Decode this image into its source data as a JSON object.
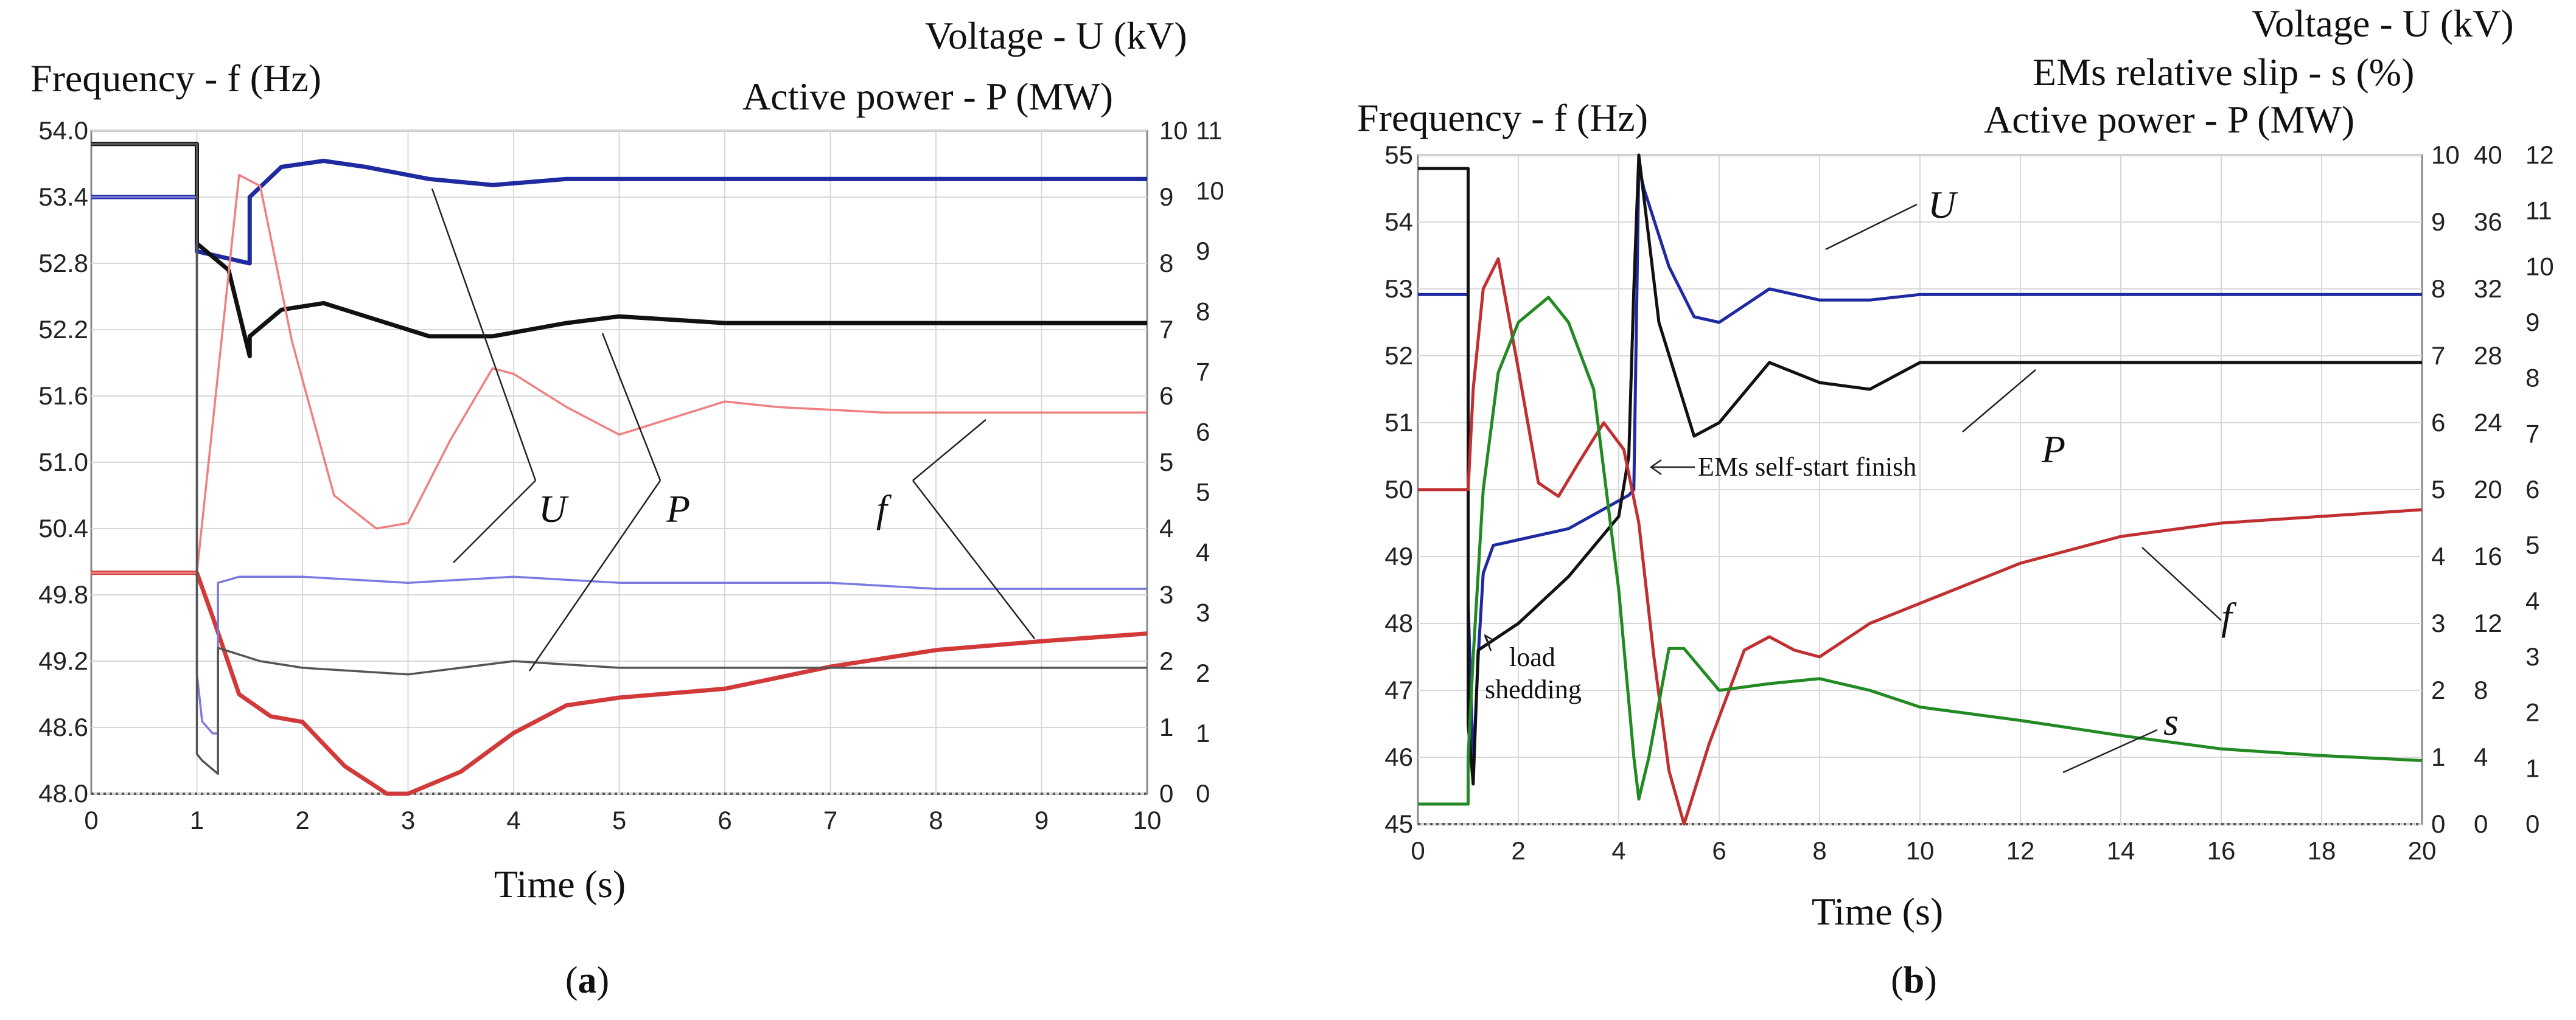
{
  "chart_data": [
    {
      "id": "a",
      "type": "line",
      "panel_label": "a",
      "left_axis_title": "Frequency - f (Hz)",
      "right_axis_title_1": "Voltage - U (kV)",
      "right_axis_title_2": "Active power - P (MW)",
      "xlabel": "Time (s)",
      "xlim": [
        0,
        10
      ],
      "x_ticks": [
        "0",
        "1",
        "2",
        "3",
        "4",
        "5",
        "6",
        "7",
        "8",
        "9",
        "10"
      ],
      "f_axis": {
        "ylim": [
          48.0,
          54.0
        ],
        "ticks": [
          "54.0",
          "53.4",
          "52.8",
          "52.2",
          "51.6",
          "51.0",
          "50.4",
          "49.8",
          "49.2",
          "48.6",
          "48.0"
        ]
      },
      "p_axis": {
        "ylim": [
          0,
          10
        ],
        "ticks": [
          "10",
          "9",
          "8",
          "7",
          "6",
          "5",
          "4",
          "3",
          "2",
          "1",
          "0"
        ]
      },
      "u_axis": {
        "ylim": [
          0,
          11
        ],
        "ticks": [
          "11",
          "10",
          "9",
          "8",
          "7",
          "6",
          "5",
          "4",
          "3",
          "2",
          "1",
          "0"
        ]
      },
      "series": [
        {
          "name": "U",
          "axis": "u",
          "color": "#1f2aa0",
          "x": [
            0,
            1,
            1.0,
            1.5,
            1.5,
            1.8,
            2.2,
            2.6,
            3.2,
            3.8,
            4.5,
            5.5,
            7,
            10
          ],
          "values": [
            9.9,
            9.9,
            9.0,
            8.8,
            9.9,
            10.4,
            10.5,
            10.4,
            10.2,
            10.1,
            10.2,
            10.2,
            10.2,
            10.2
          ]
        },
        {
          "name": "P",
          "axis": "p",
          "color": "#111111",
          "x": [
            0,
            1,
            1.0,
            1.3,
            1.5,
            1.5,
            1.8,
            2.2,
            2.6,
            3.2,
            3.8,
            4.5,
            5,
            6,
            10
          ],
          "values": [
            9.8,
            9.8,
            8.3,
            7.9,
            6.6,
            6.9,
            7.3,
            7.4,
            7.2,
            6.9,
            6.9,
            7.1,
            7.2,
            7.1,
            7.1
          ]
        },
        {
          "name": "f",
          "axis": "f",
          "color": "#d23a3a",
          "x": [
            0,
            1,
            1.15,
            1.4,
            1.7,
            2.0,
            2.4,
            2.8,
            3.0,
            3.5,
            4.0,
            4.5,
            5,
            6,
            7,
            8,
            9,
            10
          ],
          "values": [
            50.0,
            50.0,
            49.6,
            48.9,
            48.7,
            48.65,
            48.25,
            48.0,
            48.0,
            48.2,
            48.55,
            48.8,
            48.87,
            48.95,
            49.15,
            49.3,
            49.38,
            49.45
          ]
        },
        {
          "name": "U (low)",
          "axis": "u",
          "color": "#7a7ae0",
          "x": [
            0,
            1,
            1.0,
            1.05,
            1.15,
            1.2,
            1.2,
            1.4,
            2,
            3,
            4,
            5,
            6,
            7,
            8,
            10
          ],
          "values": [
            9.9,
            9.9,
            2.0,
            1.2,
            1.0,
            1.0,
            3.5,
            3.6,
            3.6,
            3.5,
            3.6,
            3.5,
            3.5,
            3.5,
            3.4,
            3.4
          ]
        },
        {
          "name": "f (oscillation)",
          "axis": "f",
          "color": "#f08080",
          "x": [
            0,
            1,
            1.2,
            1.4,
            1.6,
            1.9,
            2.3,
            2.7,
            3.0,
            3.4,
            3.8,
            4.0,
            4.5,
            5.0,
            5.5,
            6.0,
            6.5,
            7.5,
            9,
            10
          ],
          "values": [
            50.0,
            50.0,
            51.8,
            53.6,
            53.5,
            52.1,
            50.7,
            50.4,
            50.45,
            51.2,
            51.85,
            51.8,
            51.5,
            51.25,
            51.4,
            51.55,
            51.5,
            51.45,
            51.45,
            51.45
          ]
        },
        {
          "name": "P (low)",
          "axis": "p",
          "color": "#555555",
          "x": [
            0,
            1,
            1.0,
            1.05,
            1.2,
            1.2,
            1.6,
            2,
            3,
            4,
            5,
            6,
            7,
            8,
            10
          ],
          "values": [
            9.8,
            9.8,
            0.6,
            0.5,
            0.3,
            2.2,
            2.0,
            1.9,
            1.8,
            2.0,
            1.9,
            1.9,
            1.9,
            1.9,
            1.9
          ]
        }
      ],
      "labels": [
        "U",
        "P",
        "f"
      ]
    },
    {
      "id": "b",
      "type": "line",
      "panel_label": "b",
      "left_axis_title": "Frequency - f (Hz)",
      "right_axis_title_1": "Voltage - U (kV)",
      "right_axis_title_2": "EMs relative slip - s (%)",
      "right_axis_title_3": "Active power - P (MW)",
      "xlabel": "Time (s)",
      "xlim": [
        0,
        20
      ],
      "x_ticks": [
        "0",
        "2",
        "4",
        "6",
        "8",
        "10",
        "12",
        "14",
        "16",
        "18",
        "20"
      ],
      "f_axis": {
        "ylim": [
          45,
          55
        ],
        "ticks": [
          "55",
          "54",
          "53",
          "52",
          "51",
          "50",
          "49",
          "48",
          "47",
          "46",
          "45"
        ]
      },
      "p_axis": {
        "ylim": [
          0,
          10
        ],
        "ticks": [
          "10",
          "9",
          "8",
          "7",
          "6",
          "5",
          "4",
          "3",
          "2",
          "1",
          "0"
        ]
      },
      "s_axis": {
        "ylim": [
          0,
          40
        ],
        "ticks": [
          "40",
          "36",
          "32",
          "28",
          "24",
          "20",
          "16",
          "12",
          "8",
          "4",
          "0"
        ]
      },
      "u_axis": {
        "ylim": [
          0,
          12
        ],
        "ticks": [
          "12",
          "11",
          "10",
          "9",
          "8",
          "7",
          "6",
          "5",
          "4",
          "3",
          "2",
          "1",
          "0"
        ]
      },
      "series": [
        {
          "name": "U",
          "axis": "u",
          "color": "#1f2aa0",
          "x": [
            0,
            1,
            1.0,
            1.1,
            1.2,
            1.3,
            1.5,
            2,
            3,
            4,
            4.2,
            4.3,
            4.4,
            4.5,
            5,
            5.5,
            6,
            7,
            8,
            9,
            10,
            12,
            20
          ],
          "values": [
            9.5,
            9.5,
            4.0,
            1.0,
            3.0,
            4.5,
            5.0,
            5.1,
            5.3,
            5.8,
            5.9,
            6.0,
            11.8,
            11.4,
            10.0,
            9.1,
            9.0,
            9.6,
            9.4,
            9.4,
            9.5,
            9.5,
            9.5
          ]
        },
        {
          "name": "P",
          "axis": "p",
          "color": "#111111",
          "x": [
            0,
            1,
            1.0,
            1.1,
            1.2,
            1.4,
            2,
            3,
            4,
            4.2,
            4.3,
            4.4,
            4.8,
            5.5,
            6,
            7,
            8,
            9,
            10,
            20
          ],
          "values": [
            9.8,
            9.8,
            1.5,
            0.6,
            2.6,
            2.7,
            3.0,
            3.7,
            4.6,
            5.5,
            8.0,
            10.0,
            7.5,
            5.8,
            6.0,
            6.9,
            6.6,
            6.5,
            6.9,
            6.9
          ]
        },
        {
          "name": "f",
          "axis": "f",
          "color": "#c03030",
          "x": [
            0,
            1,
            1.1,
            1.3,
            1.6,
            2.0,
            2.4,
            2.8,
            3.2,
            3.7,
            4.1,
            4.4,
            4.7,
            5.0,
            5.3,
            5.8,
            6.5,
            7,
            7.5,
            8,
            9,
            10,
            12,
            14,
            16,
            18,
            20
          ],
          "values": [
            50.0,
            50.0,
            51.5,
            53.0,
            53.45,
            51.8,
            50.1,
            49.9,
            50.4,
            51.0,
            50.6,
            49.5,
            47.5,
            45.8,
            45.0,
            46.2,
            47.6,
            47.8,
            47.6,
            47.5,
            48.0,
            48.3,
            48.9,
            49.3,
            49.5,
            49.6,
            49.7
          ]
        },
        {
          "name": "s",
          "axis": "s",
          "color": "#238a23",
          "x": [
            0,
            1,
            1.0,
            1.1,
            1.3,
            1.6,
            2,
            2.6,
            3.0,
            3.5,
            4.0,
            4.3,
            4.4,
            4.6,
            5.0,
            5.3,
            6,
            7,
            8,
            9,
            10,
            12,
            14,
            16,
            18,
            20
          ],
          "values": [
            1.2,
            1.2,
            4.0,
            10.0,
            20.0,
            27.0,
            30.0,
            31.5,
            30.0,
            26.0,
            14.0,
            4.0,
            1.5,
            4.0,
            10.5,
            10.5,
            8.0,
            8.4,
            8.7,
            8.0,
            7.0,
            6.2,
            5.3,
            4.5,
            4.1,
            3.8
          ]
        }
      ],
      "labels": [
        "U",
        "P",
        "f",
        "s"
      ],
      "annotations": [
        "EMs self-start finish",
        "load",
        "shedding"
      ]
    }
  ]
}
